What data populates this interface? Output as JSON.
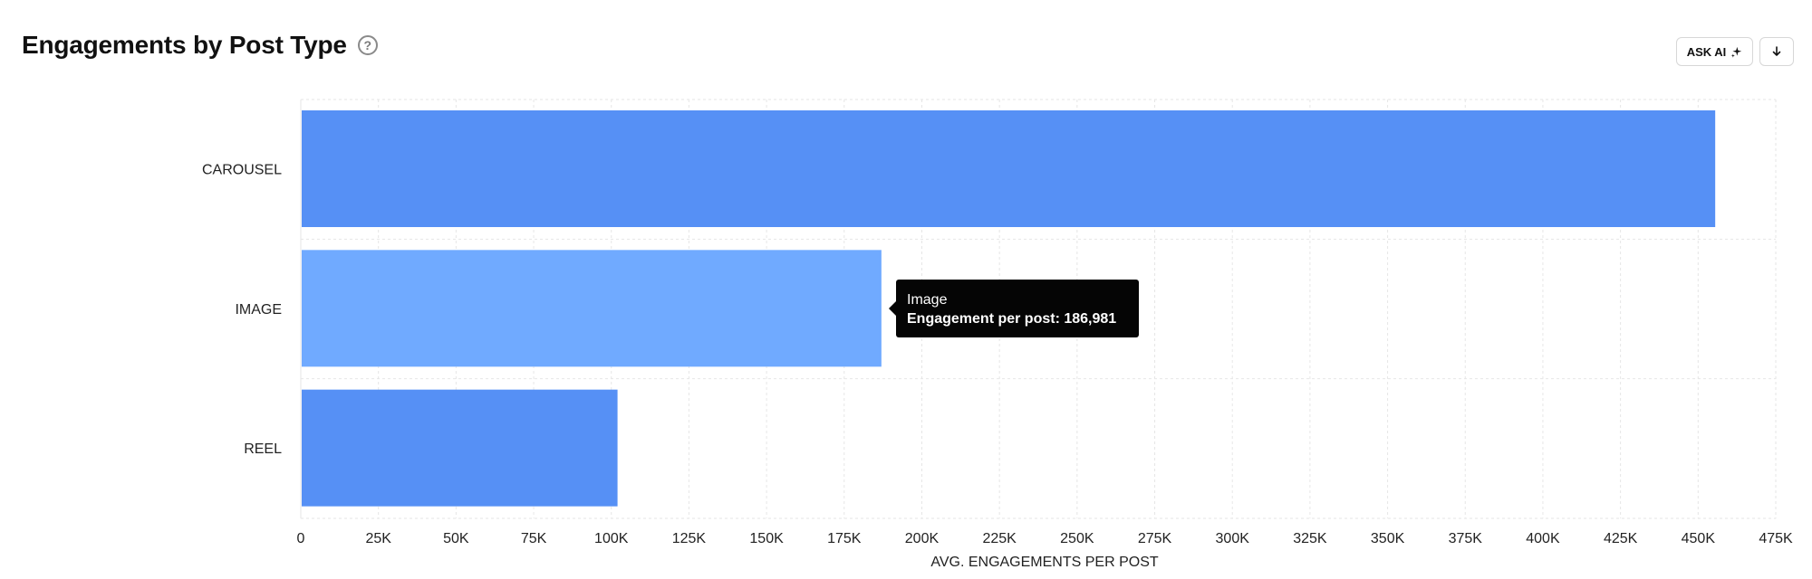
{
  "header": {
    "title": "Engagements by Post Type",
    "help_glyph": "?",
    "ask_ai_label": "ASK AI",
    "ask_ai_icon": "sparkle-icon",
    "download_icon": "arrow-down-icon"
  },
  "tooltip": {
    "category": "Image",
    "value_text": "Engagement per post: 186,981"
  },
  "colors": {
    "bar": "#5690F5",
    "bar_highlight": "#70AAFF",
    "grid": "#e6e6e6",
    "tooltip_bg": "#050505"
  },
  "chart_data": {
    "type": "bar",
    "orientation": "horizontal",
    "categories": [
      "CAROUSEL",
      "IMAGE",
      "REEL"
    ],
    "values": [
      455500,
      186981,
      102000
    ],
    "highlighted_category": "IMAGE",
    "xlabel": "AVG. ENGAGEMENTS PER POST",
    "ylabel": "",
    "xlim": [
      0,
      475000
    ],
    "xticks": [
      0,
      25000,
      50000,
      75000,
      100000,
      125000,
      150000,
      175000,
      200000,
      225000,
      250000,
      275000,
      300000,
      325000,
      350000,
      375000,
      400000,
      425000,
      450000,
      475000
    ],
    "xtick_labels": [
      "0",
      "25K",
      "50K",
      "75K",
      "100K",
      "125K",
      "150K",
      "175K",
      "200K",
      "225K",
      "250K",
      "275K",
      "300K",
      "325K",
      "350K",
      "375K",
      "400K",
      "425K",
      "450K",
      "475K"
    ],
    "grid": true
  }
}
